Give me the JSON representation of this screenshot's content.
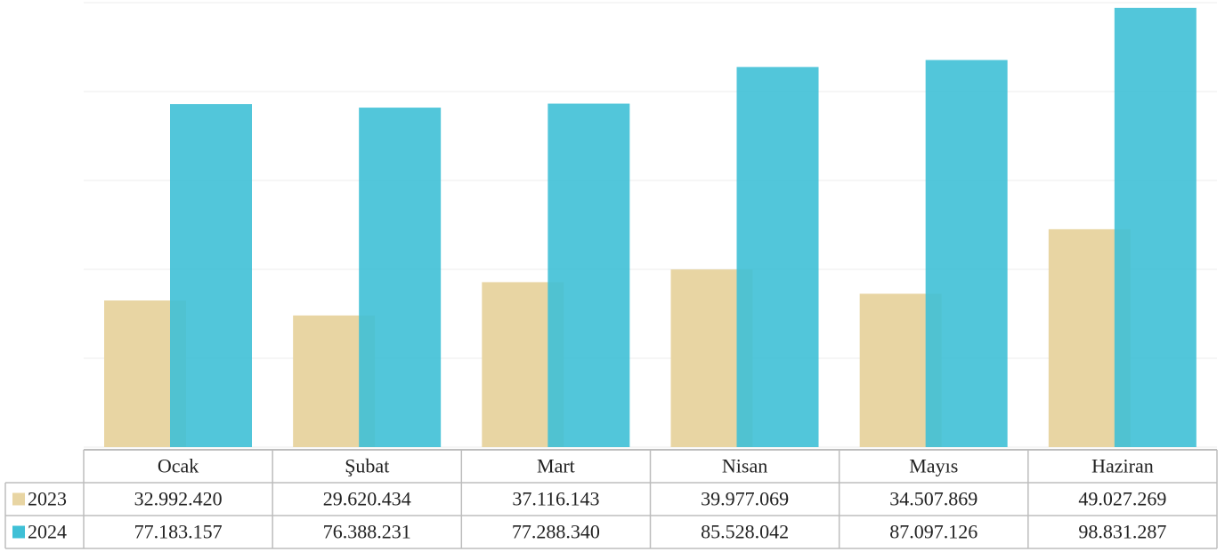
{
  "chart_data": {
    "type": "bar",
    "categories": [
      "Ocak",
      "Şubat",
      "Mart",
      "Nisan",
      "Mayıs",
      "Haziran"
    ],
    "series": [
      {
        "name": "2023",
        "color": "#e8d5a3",
        "values": [
          32992420,
          29620434,
          37116143,
          39977069,
          34507869,
          49027269
        ],
        "labels": [
          "32.992.420",
          "29.620.434",
          "37.116.143",
          "39.977.069",
          "34.507.869",
          "49.027.269"
        ]
      },
      {
        "name": "2024",
        "color": "#3fc0d6",
        "values": [
          77183157,
          76388231,
          77288340,
          85528042,
          87097126,
          98831287
        ],
        "labels": [
          "77.183.157",
          "76.388.231",
          "77.288.340",
          "85.528.042",
          "87.097.126",
          "98.831.287"
        ]
      }
    ],
    "ylim": [
      0,
      100000000
    ],
    "grid": true,
    "legend": "data-table"
  }
}
